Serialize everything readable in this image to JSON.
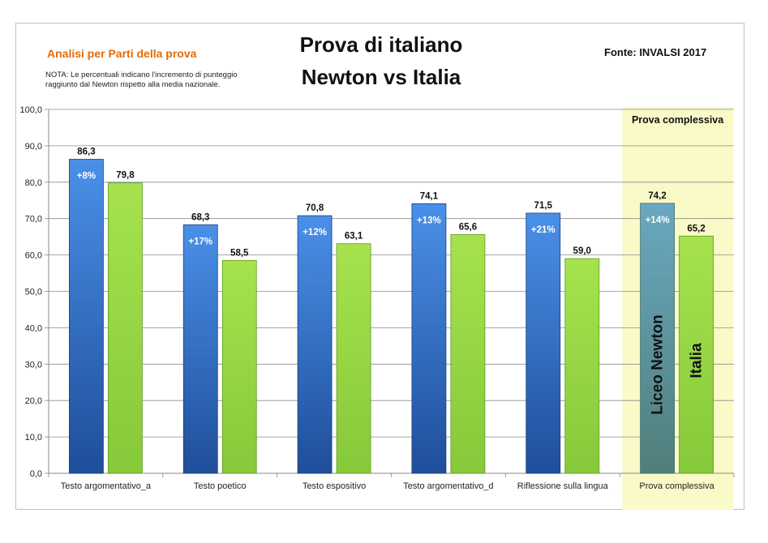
{
  "header": {
    "subtitle": "Analisi per Parti della prova",
    "note": "NOTA: Le percentuali indicano l'incremento di punteggio raggiunto dal Newton rispetto alla media nazionale.",
    "title_line1": "Prova di italiano",
    "title_line2": "Newton vs Italia",
    "source": "Fonte: INVALSI 2017"
  },
  "chart_data": {
    "type": "bar",
    "title": "Prova di italiano Newton vs Italia",
    "categories": [
      "Testo argomentativo_a",
      "Testo poetico",
      "Testo espositivo",
      "Testo argomentativo_d",
      "Riflessione sulla lingua",
      "Prova complessiva"
    ],
    "series": [
      {
        "name": "Liceo Newton",
        "values": [
          86.3,
          68.3,
          70.8,
          74.1,
          71.5,
          74.2
        ],
        "increments": [
          "+8%",
          "+17%",
          "+12%",
          "+13%",
          "+21%",
          "+14%"
        ]
      },
      {
        "name": "Italia",
        "values": [
          79.8,
          58.5,
          63.1,
          65.6,
          59.0,
          65.2
        ]
      }
    ],
    "value_labels": {
      "newton": [
        "86,3",
        "68,3",
        "70,8",
        "74,1",
        "71,5",
        "74,2"
      ],
      "italia": [
        "79,8",
        "58,5",
        "63,1",
        "65,6",
        "59,0",
        "65,2"
      ]
    },
    "yticks": [
      "0,0",
      "10,0",
      "20,0",
      "30,0",
      "40,0",
      "50,0",
      "60,0",
      "70,0",
      "80,0",
      "90,0",
      "100,0"
    ],
    "ylim": [
      0,
      100
    ],
    "grid": true,
    "highlight_label": "Prova complessiva",
    "colors": {
      "newton": "#3f7fd6",
      "newton_dark": "#1f4e9a",
      "newton_total": "#5b9aa8",
      "italia": "#9ad94a",
      "italia_dark": "#6aa828",
      "highlight_bg": "#fafac8"
    }
  }
}
